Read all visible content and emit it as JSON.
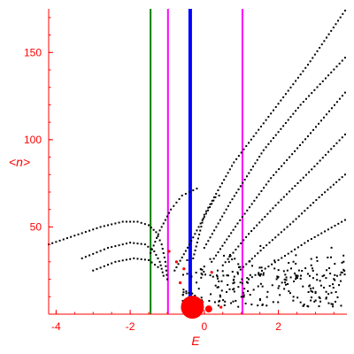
{
  "chart_data": {
    "type": "scatter",
    "title": "",
    "xlabel": "E",
    "ylabel": "<n>",
    "xlim": [
      -4.2,
      3.85
    ],
    "ylim": [
      0,
      175
    ],
    "xticks": [
      "-4",
      "-2",
      "0",
      "2"
    ],
    "xtick_values": [
      -4,
      -2,
      0,
      2
    ],
    "yticks": [
      "50",
      "100",
      "150"
    ],
    "ytick_values": [
      50,
      100,
      150
    ],
    "grid": false,
    "legend": "none",
    "colors": {
      "axis": "#ff0000",
      "points": "#000000",
      "highlight_points": "#ff0000",
      "line_green": "#008000",
      "line_magenta": "#ff00ff",
      "line_blue": "#0000ff"
    },
    "vertical_lines": [
      {
        "x": -1.45,
        "color": "#008000"
      },
      {
        "x": -0.98,
        "color": "#ff00ff"
      },
      {
        "x": -0.38,
        "color": "#0000ff"
      },
      {
        "x": 1.03,
        "color": "#ff00ff"
      }
    ],
    "red_markers": [
      {
        "x": -0.32,
        "y": 4,
        "size": "large"
      },
      {
        "x": 0.12,
        "y": 3,
        "size": "medium"
      },
      {
        "x": -0.05,
        "y": 7,
        "size": "small"
      },
      {
        "x": -0.65,
        "y": 18,
        "size": "small"
      },
      {
        "x": -0.55,
        "y": 26,
        "size": "small"
      },
      {
        "x": -0.75,
        "y": 30,
        "size": "small"
      },
      {
        "x": 0.45,
        "y": 4,
        "size": "small"
      },
      {
        "x": -0.95,
        "y": 36,
        "size": "small"
      },
      {
        "x": 0.2,
        "y": 24,
        "size": "small"
      }
    ],
    "series": [
      {
        "curve": [
          [
            -0.3,
            32
          ],
          [
            0.0,
            57
          ],
          [
            0.8,
            87
          ],
          [
            1.8,
            115
          ],
          [
            2.8,
            143
          ],
          [
            3.8,
            174
          ]
        ]
      },
      {
        "curve": [
          [
            0.0,
            38
          ],
          [
            0.7,
            64
          ],
          [
            1.6,
            94
          ],
          [
            2.6,
            120
          ],
          [
            3.8,
            147
          ]
        ]
      },
      {
        "curve": [
          [
            0.2,
            30
          ],
          [
            0.9,
            52
          ],
          [
            1.8,
            78
          ],
          [
            2.8,
            102
          ],
          [
            3.8,
            127
          ]
        ]
      },
      {
        "curve": [
          [
            0.5,
            28
          ],
          [
            1.2,
            46
          ],
          [
            2.0,
            64
          ],
          [
            2.9,
            83
          ],
          [
            3.8,
            103
          ]
        ]
      },
      {
        "curve": [
          [
            0.9,
            24
          ],
          [
            1.6,
            38
          ],
          [
            2.4,
            53
          ],
          [
            3.1,
            67
          ],
          [
            3.8,
            80
          ]
        ]
      },
      {
        "curve": [
          [
            1.2,
            20
          ],
          [
            2.0,
            31
          ],
          [
            2.8,
            42
          ],
          [
            3.8,
            54
          ]
        ]
      },
      {
        "curve": [
          [
            -4.2,
            40
          ],
          [
            -3.5,
            45
          ],
          [
            -2.8,
            50
          ],
          [
            -2.2,
            53
          ],
          [
            -1.8,
            53
          ],
          [
            -1.5,
            51
          ],
          [
            -1.3,
            47
          ],
          [
            -1.15,
            40
          ],
          [
            -1.05,
            30
          ],
          [
            -1.0,
            20
          ]
        ]
      },
      {
        "curve": [
          [
            -3.3,
            32
          ],
          [
            -2.6,
            38
          ],
          [
            -2.0,
            41
          ],
          [
            -1.6,
            40
          ],
          [
            -1.35,
            36
          ],
          [
            -1.2,
            30
          ],
          [
            -1.1,
            22
          ]
        ]
      },
      {
        "curve": [
          [
            -3.0,
            25
          ],
          [
            -2.4,
            30
          ],
          [
            -1.9,
            32
          ],
          [
            -1.5,
            31
          ],
          [
            -1.25,
            27
          ]
        ]
      },
      {
        "curve": [
          [
            -1.45,
            35
          ],
          [
            -1.2,
            48
          ],
          [
            -0.9,
            60
          ],
          [
            -0.6,
            68
          ],
          [
            -0.4,
            70
          ],
          [
            -0.2,
            72
          ]
        ]
      },
      {
        "curve": [
          [
            -0.8,
            25
          ],
          [
            -0.4,
            40
          ],
          [
            -0.1,
            52
          ],
          [
            0.3,
            67
          ],
          [
            0.4,
            68
          ]
        ]
      }
    ],
    "scatter_region": {
      "x": [
        -0.6,
        3.8
      ],
      "y": [
        4,
        40
      ],
      "count": 260
    }
  }
}
